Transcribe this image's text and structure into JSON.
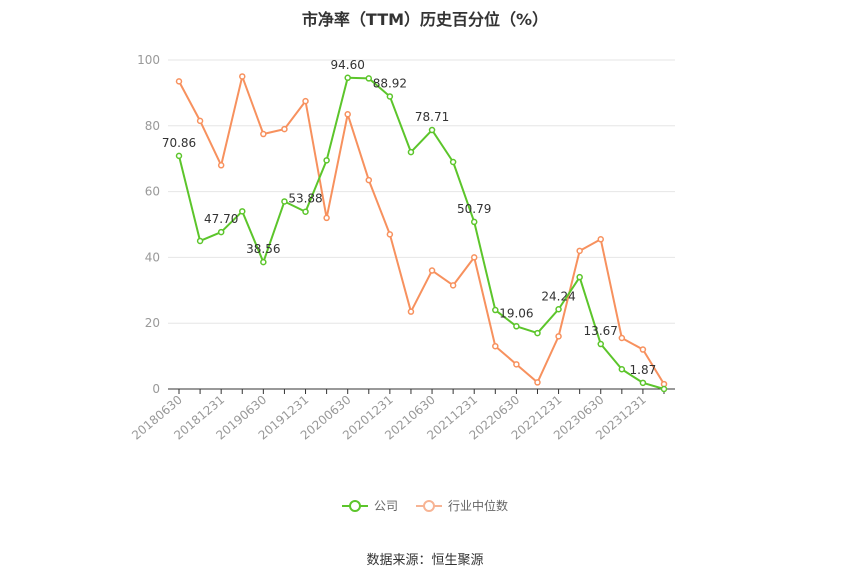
{
  "chart_data": {
    "type": "line",
    "title": "市净率（TTM）历史百分位（%）",
    "x": [
      "20180630",
      "20180930",
      "20181231",
      "20190331",
      "20190630",
      "20190930",
      "20191231",
      "20200331",
      "20200630",
      "20200930",
      "20201231",
      "20210331",
      "20210630",
      "20210930",
      "20211231",
      "20220331",
      "20220630",
      "20220930",
      "20221231",
      "20230331",
      "20230630",
      "20230930",
      "20231231",
      "20240331"
    ],
    "x_tick_labels": [
      "20180630",
      "20181231",
      "20190630",
      "20191231",
      "20200630",
      "20201231",
      "20210630",
      "20211231",
      "20220630",
      "20221231",
      "20230630",
      "20231231"
    ],
    "ylim": [
      0,
      100
    ],
    "y_ticks": [
      0,
      20,
      40,
      60,
      80,
      100
    ],
    "grid": true,
    "legend_position": "bottom",
    "series": [
      {
        "name": "公司",
        "color": "#5cc52b",
        "values": [
          70.86,
          45.0,
          47.7,
          54.0,
          38.56,
          57.0,
          53.88,
          69.5,
          94.6,
          94.4,
          88.92,
          72.0,
          78.71,
          69.0,
          50.79,
          24.0,
          19.06,
          17.0,
          24.24,
          34.0,
          13.67,
          6.0,
          1.87,
          0.0
        ],
        "labels": [
          "70.86",
          "",
          "47.70",
          "",
          "38.56",
          "",
          "53.88",
          "",
          "94.60",
          "",
          "88.92",
          "",
          "78.71",
          "",
          "50.79",
          "",
          "19.06",
          "",
          "24.24",
          "",
          "13.67",
          "",
          "1.87",
          ""
        ]
      },
      {
        "name": "行业中位数",
        "color": "#f7915e",
        "values": [
          93.5,
          81.5,
          68.0,
          95.0,
          77.5,
          79.0,
          87.5,
          52.0,
          83.5,
          63.5,
          47.0,
          23.5,
          36.0,
          31.5,
          40.0,
          13.0,
          7.5,
          2.0,
          16.0,
          42.0,
          45.5,
          15.5,
          12.0,
          1.5
        ]
      }
    ]
  },
  "source": "数据来源：恒生聚源"
}
